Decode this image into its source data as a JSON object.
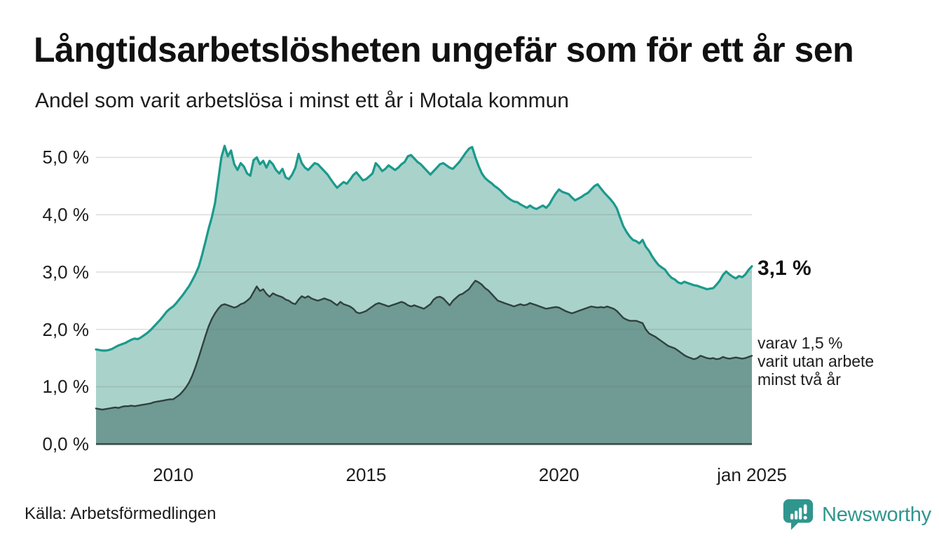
{
  "header": {
    "title": "Långtidsarbetslösheten ungefär som för ett år sen",
    "subtitle": "Andel som varit arbetslösa i minst ett år i Motala kommun"
  },
  "annotations": {
    "latest_value": "3,1 %",
    "secondary": [
      "varav 1,5 %",
      "varit utan arbete",
      "minst två år"
    ]
  },
  "footer": {
    "source": "Källa: Arbetsförmedlingen",
    "brand_name": "Newsworthy"
  },
  "colors": {
    "line_1yr": "#1a9a8b",
    "fill_1yr": "#a9d2cb",
    "line_2yr": "#30413d",
    "fill_2yr": "#6f9b94",
    "axis": "#3b4b48",
    "grid": "rgba(100,112,110,0.22)",
    "brand_teal": "#2f968e",
    "text": "#1a1a1a"
  },
  "chart_data": {
    "type": "area",
    "title": "Långtidsarbetslösheten ungefär som för ett år sen",
    "subtitle": "Andel som varit arbetslösa i minst ett år i Motala kommun",
    "unit": "%",
    "frequency": "monthly",
    "x_start": "2008-01",
    "x_end": "2025-01",
    "x_start_year": 2008,
    "x_end_year": 2025,
    "ylim": [
      0,
      5.45
    ],
    "grid": true,
    "legend": "none",
    "y_ticks": [
      {
        "label": "0,0 %",
        "value": 0
      },
      {
        "label": "1,0 %",
        "value": 1
      },
      {
        "label": "2,0 %",
        "value": 2
      },
      {
        "label": "3,0 %",
        "value": 3
      },
      {
        "label": "4,0 %",
        "value": 4
      },
      {
        "label": "5,0 %",
        "value": 5
      }
    ],
    "x_ticks": [
      {
        "label": "2010",
        "year": 2010
      },
      {
        "label": "2015",
        "year": 2015
      },
      {
        "label": "2020",
        "year": 2020
      },
      {
        "label": "jan 2025",
        "year": 2025
      }
    ],
    "series": [
      {
        "name": "Arbetslösa minst ett år",
        "latest_label": "3,1 %",
        "values": [
          1.65,
          1.64,
          1.63,
          1.63,
          1.64,
          1.66,
          1.69,
          1.72,
          1.74,
          1.76,
          1.79,
          1.82,
          1.84,
          1.83,
          1.86,
          1.9,
          1.94,
          1.99,
          2.05,
          2.11,
          2.17,
          2.24,
          2.31,
          2.36,
          2.4,
          2.46,
          2.53,
          2.6,
          2.68,
          2.76,
          2.86,
          2.97,
          3.1,
          3.3,
          3.52,
          3.75,
          3.95,
          4.2,
          4.6,
          5.0,
          5.2,
          5.02,
          5.12,
          4.88,
          4.78,
          4.9,
          4.84,
          4.72,
          4.68,
          4.95,
          5.0,
          4.88,
          4.94,
          4.82,
          4.94,
          4.88,
          4.78,
          4.72,
          4.8,
          4.65,
          4.62,
          4.7,
          4.82,
          5.06,
          4.9,
          4.82,
          4.78,
          4.84,
          4.9,
          4.88,
          4.82,
          4.76,
          4.7,
          4.62,
          4.54,
          4.47,
          4.52,
          4.57,
          4.54,
          4.61,
          4.69,
          4.74,
          4.67,
          4.6,
          4.62,
          4.67,
          4.72,
          4.9,
          4.84,
          4.76,
          4.8,
          4.86,
          4.82,
          4.78,
          4.82,
          4.88,
          4.92,
          5.02,
          5.04,
          4.98,
          4.92,
          4.88,
          4.82,
          4.76,
          4.7,
          4.76,
          4.82,
          4.88,
          4.9,
          4.86,
          4.82,
          4.8,
          4.86,
          4.92,
          5.0,
          5.08,
          5.15,
          5.18,
          5.0,
          4.85,
          4.72,
          4.64,
          4.59,
          4.55,
          4.5,
          4.46,
          4.41,
          4.35,
          4.3,
          4.26,
          4.23,
          4.22,
          4.18,
          4.15,
          4.12,
          4.16,
          4.12,
          4.1,
          4.13,
          4.16,
          4.12,
          4.18,
          4.28,
          4.37,
          4.44,
          4.4,
          4.38,
          4.36,
          4.3,
          4.25,
          4.28,
          4.31,
          4.35,
          4.38,
          4.44,
          4.5,
          4.53,
          4.46,
          4.39,
          4.33,
          4.27,
          4.2,
          4.11,
          3.95,
          3.8,
          3.7,
          3.62,
          3.56,
          3.54,
          3.5,
          3.56,
          3.44,
          3.37,
          3.27,
          3.19,
          3.12,
          3.08,
          3.04,
          2.96,
          2.9,
          2.87,
          2.82,
          2.8,
          2.83,
          2.81,
          2.79,
          2.77,
          2.76,
          2.74,
          2.72,
          2.7,
          2.71,
          2.72,
          2.78,
          2.85,
          2.95,
          3.01,
          2.96,
          2.92,
          2.89,
          2.93,
          2.91,
          2.96,
          3.04,
          3.1
        ]
      },
      {
        "name": "varav utan arbete minst två år",
        "latest_label": "varav 1,5 % varit utan arbete minst två år",
        "values": [
          0.62,
          0.61,
          0.6,
          0.61,
          0.62,
          0.63,
          0.64,
          0.63,
          0.65,
          0.66,
          0.66,
          0.67,
          0.66,
          0.67,
          0.68,
          0.69,
          0.7,
          0.71,
          0.73,
          0.74,
          0.75,
          0.76,
          0.77,
          0.78,
          0.78,
          0.82,
          0.86,
          0.92,
          0.99,
          1.08,
          1.2,
          1.35,
          1.52,
          1.7,
          1.88,
          2.05,
          2.18,
          2.28,
          2.36,
          2.42,
          2.44,
          2.42,
          2.4,
          2.38,
          2.4,
          2.44,
          2.46,
          2.5,
          2.55,
          2.65,
          2.75,
          2.67,
          2.7,
          2.62,
          2.57,
          2.63,
          2.6,
          2.58,
          2.56,
          2.52,
          2.5,
          2.46,
          2.44,
          2.52,
          2.58,
          2.55,
          2.58,
          2.54,
          2.52,
          2.5,
          2.52,
          2.54,
          2.52,
          2.5,
          2.46,
          2.42,
          2.48,
          2.44,
          2.42,
          2.4,
          2.36,
          2.3,
          2.28,
          2.3,
          2.32,
          2.36,
          2.4,
          2.44,
          2.46,
          2.44,
          2.42,
          2.4,
          2.42,
          2.44,
          2.46,
          2.48,
          2.46,
          2.42,
          2.4,
          2.42,
          2.4,
          2.38,
          2.36,
          2.4,
          2.44,
          2.52,
          2.56,
          2.57,
          2.54,
          2.48,
          2.42,
          2.5,
          2.55,
          2.6,
          2.62,
          2.66,
          2.7,
          2.78,
          2.85,
          2.82,
          2.78,
          2.72,
          2.68,
          2.62,
          2.56,
          2.5,
          2.48,
          2.46,
          2.44,
          2.42,
          2.4,
          2.42,
          2.44,
          2.42,
          2.43,
          2.46,
          2.44,
          2.42,
          2.4,
          2.38,
          2.36,
          2.37,
          2.38,
          2.39,
          2.38,
          2.35,
          2.32,
          2.3,
          2.28,
          2.3,
          2.32,
          2.34,
          2.36,
          2.38,
          2.4,
          2.39,
          2.38,
          2.39,
          2.38,
          2.4,
          2.38,
          2.36,
          2.32,
          2.26,
          2.2,
          2.17,
          2.15,
          2.15,
          2.15,
          2.13,
          2.11,
          2.0,
          1.93,
          1.9,
          1.87,
          1.83,
          1.79,
          1.75,
          1.71,
          1.69,
          1.67,
          1.63,
          1.59,
          1.55,
          1.52,
          1.5,
          1.48,
          1.5,
          1.54,
          1.52,
          1.5,
          1.49,
          1.5,
          1.48,
          1.49,
          1.52,
          1.5,
          1.49,
          1.5,
          1.51,
          1.5,
          1.49,
          1.5,
          1.52,
          1.54
        ]
      }
    ]
  }
}
